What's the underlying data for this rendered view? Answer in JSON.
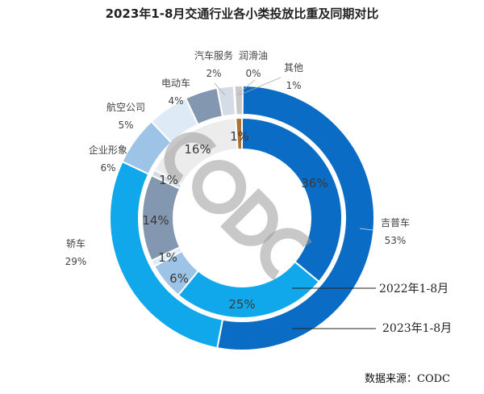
{
  "chart_data": {
    "type": "donut",
    "title": "2023年1-8月交通行业各小类投放比重及同期对比",
    "categories": [
      "吉普车",
      "轿车",
      "企业形象",
      "航空公司",
      "电动车",
      "汽车服务",
      "润滑油",
      "其他"
    ],
    "series": [
      {
        "name": "2023年1-8月",
        "ring": "outer",
        "values": [
          53,
          29,
          6,
          5,
          4,
          2,
          0,
          1
        ],
        "colors": [
          "#0a6cc4",
          "#10a8ea",
          "#9dc3e6",
          "#deebf7",
          "#8497b0",
          "#d6dce5",
          "#1f3864",
          "#c9c9c9"
        ]
      },
      {
        "name": "2022年1-8月",
        "ring": "inner",
        "values": [
          36,
          25,
          6,
          1,
          14,
          1,
          16,
          1
        ],
        "colors": [
          "#0a6cc4",
          "#10a8ea",
          "#9dc3e6",
          "#deebf7",
          "#8497b0",
          "#d6dce5",
          "#ececec",
          "#b07030"
        ]
      }
    ],
    "outer_labels": [
      "53%",
      "29%",
      "6%",
      "5%",
      "4%",
      "2%",
      "0%",
      "1%"
    ],
    "inner_labels": [
      "36%",
      "25%",
      "6%",
      "1%",
      "14%",
      "1%",
      "16%",
      "1%"
    ]
  },
  "watermark": "CODC",
  "source": "数据来源：CODC"
}
